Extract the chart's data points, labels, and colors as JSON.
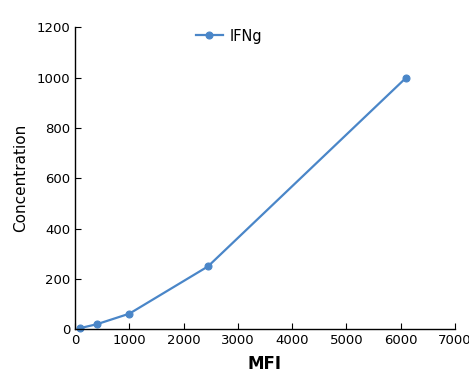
{
  "x": [
    100,
    400,
    1000,
    2450,
    6100
  ],
  "y": [
    5,
    20,
    62,
    250,
    1000
  ],
  "line_color": "#4a86c8",
  "marker_color": "#4a86c8",
  "marker_style": "o",
  "marker_size": 5,
  "line_width": 1.6,
  "xlabel": "MFI",
  "ylabel": "Concentration",
  "legend_label": "IFNg",
  "xlim": [
    0,
    7000
  ],
  "ylim": [
    0,
    1200
  ],
  "xticks": [
    0,
    1000,
    2000,
    3000,
    4000,
    5000,
    6000,
    7000
  ],
  "yticks": [
    0,
    200,
    400,
    600,
    800,
    1000,
    1200
  ],
  "xlabel_fontsize": 12,
  "ylabel_fontsize": 11,
  "tick_fontsize": 9.5,
  "legend_fontsize": 10.5,
  "background_color": "#ffffff",
  "spine_color": "#000000",
  "tick_color": "#000000",
  "label_color": "#000000"
}
